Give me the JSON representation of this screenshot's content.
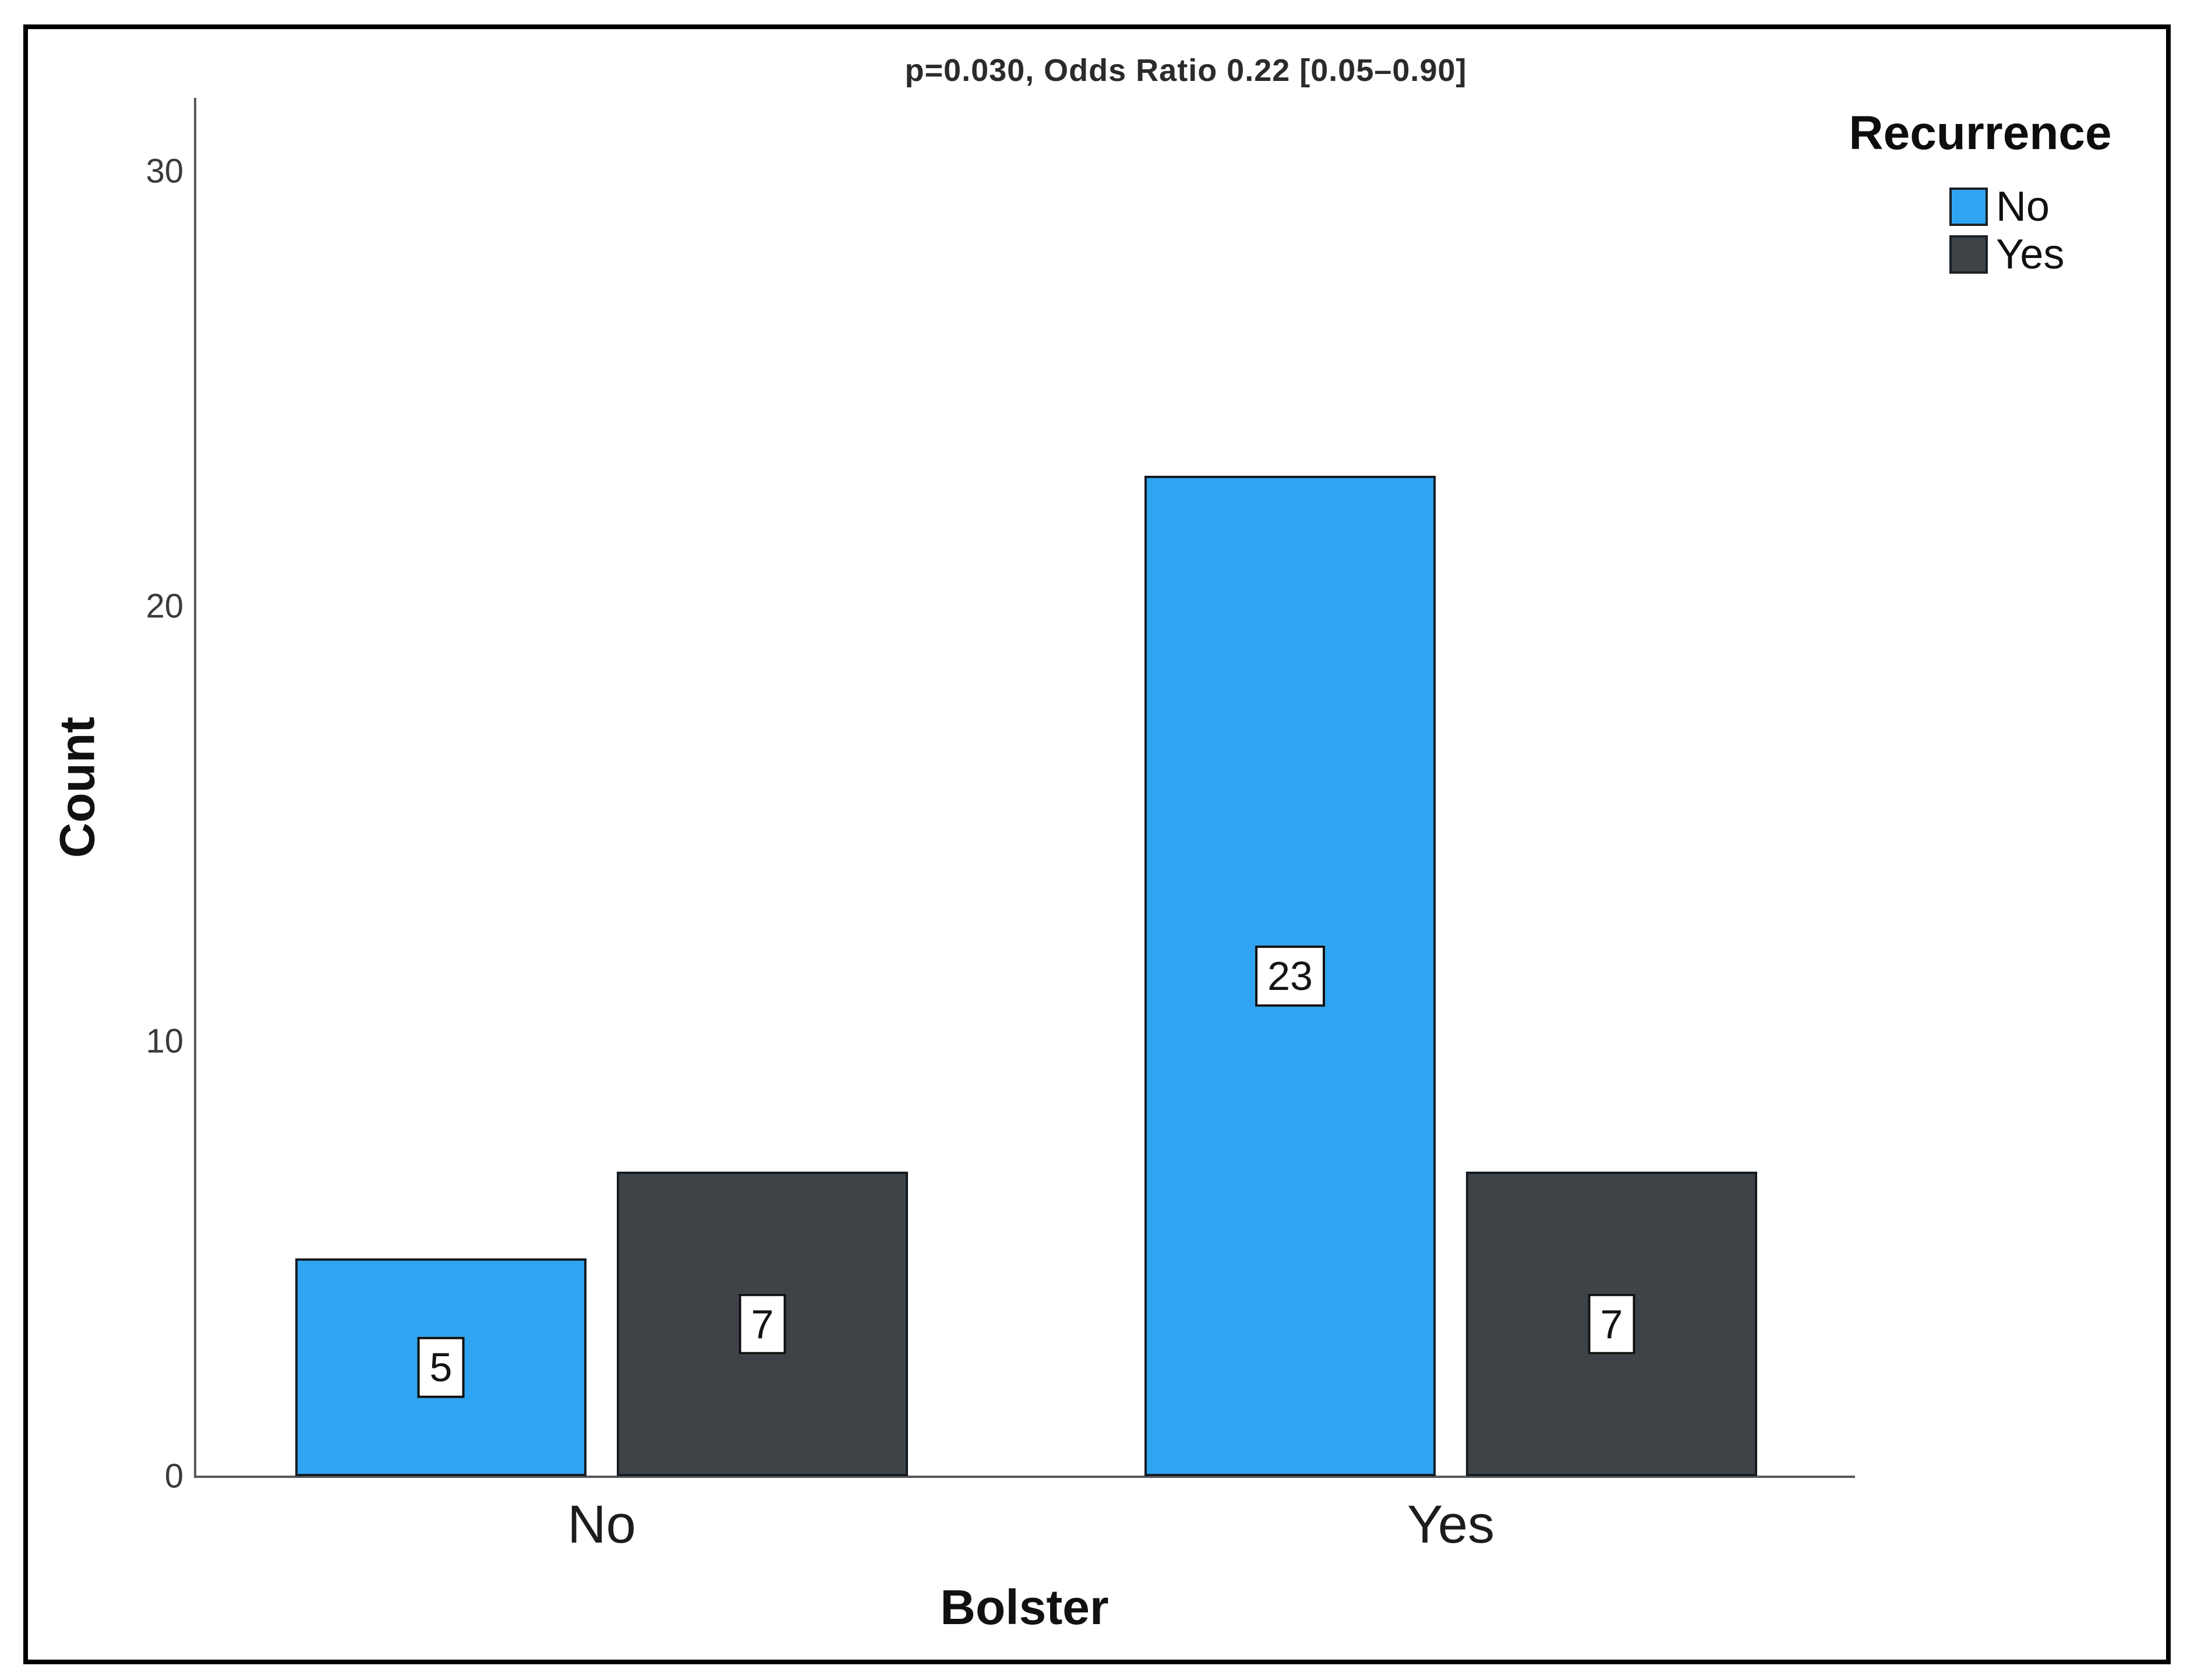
{
  "chart_data": {
    "type": "bar",
    "title": "p=0.030, Odds Ratio 0.22 [0.05–0.90]",
    "xlabel": "Bolster",
    "ylabel": "Count",
    "categories": [
      "No",
      "Yes"
    ],
    "series": [
      {
        "name": "No",
        "color": "#2FA5F1",
        "values": [
          5,
          23
        ]
      },
      {
        "name": "Yes",
        "color": "#3E4348",
        "values": [
          7,
          7
        ]
      }
    ],
    "legend_title": "Recurrence",
    "legend_position": "top-right",
    "yticks": [
      30,
      20,
      10,
      0
    ],
    "ylim": [
      0,
      32
    ],
    "grid": false,
    "bar_value_labels": true,
    "frame_color": "#000000",
    "axis_color": "#58595c"
  }
}
